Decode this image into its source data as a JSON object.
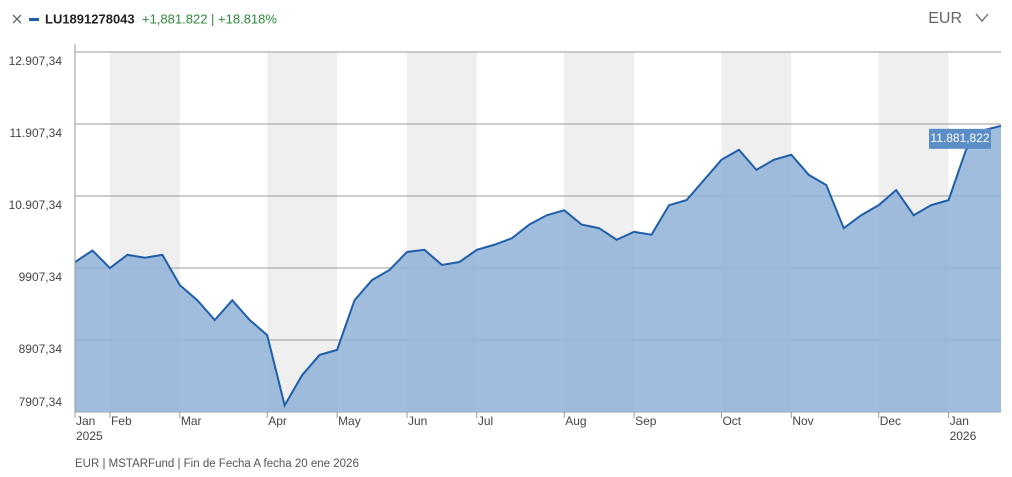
{
  "chart_data": {
    "type": "area",
    "title": "LU1891278043",
    "subtitle": "+1,881.822 | +18.818%",
    "currency": "EUR",
    "footnote": "EUR | MSTARFund | Fin de Fecha A fecha 20 ene 2026",
    "categories": [
      "Jan",
      null,
      "Feb",
      null,
      null,
      null,
      "Mar",
      null,
      null,
      null,
      null,
      "Apr",
      null,
      null,
      null,
      "May",
      null,
      null,
      null,
      "Jun",
      null,
      null,
      null,
      "Jul",
      null,
      null,
      null,
      null,
      "Aug",
      null,
      null,
      null,
      "Sep",
      null,
      null,
      null,
      null,
      "Oct",
      null,
      null,
      null,
      "Nov",
      null,
      null,
      null,
      null,
      "Dec",
      null,
      null,
      null,
      "Jan",
      null,
      null,
      null
    ],
    "year_labels": [
      "2025",
      "2026"
    ],
    "series": [
      {
        "name": "LU1891278043",
        "color": "#1f5ea8",
        "fill": "#8fb2d8",
        "values": [
          9990,
          10150,
          9907,
          10090,
          10050,
          10090,
          9670,
          9460,
          9185,
          9460,
          9185,
          8975,
          8000,
          8420,
          8700,
          8770,
          9460,
          9740,
          9880,
          10130,
          10160,
          9950,
          9990,
          10160,
          10230,
          10320,
          10510,
          10640,
          10710,
          10510,
          10460,
          10300,
          10410,
          10370,
          10780,
          10850,
          11130,
          11410,
          11550,
          11270,
          11410,
          11480,
          11200,
          11060,
          10460,
          10640,
          10780,
          10990,
          10640,
          10780,
          10850,
          11550,
          11820,
          11881.822
        ],
        "value_labels": [
          null,
          null,
          null,
          null,
          null,
          null,
          null,
          null,
          null,
          null,
          null,
          null,
          null,
          null,
          null,
          null,
          null,
          null,
          null,
          null,
          null,
          null,
          null,
          null,
          null,
          null,
          null,
          null,
          null,
          null,
          null,
          null,
          null,
          null,
          null,
          null,
          null,
          null,
          null,
          null,
          null,
          null,
          null,
          null,
          null,
          null,
          null,
          null,
          null,
          null,
          null,
          null,
          null,
          "11.881,822"
        ]
      }
    ],
    "ylim": [
      7907.34,
      12907.34
    ],
    "yticks": [
      {
        "value": 7907.34,
        "label": "7907,34"
      },
      {
        "value": 8907.34,
        "label": "8907,34"
      },
      {
        "value": 9907.34,
        "label": "9907,34"
      },
      {
        "value": 10907.34,
        "label": "10.907,34"
      },
      {
        "value": 11907.34,
        "label": "11.907,34"
      },
      {
        "value": 12907.34,
        "label": "12.907,34"
      }
    ],
    "grid": true
  }
}
